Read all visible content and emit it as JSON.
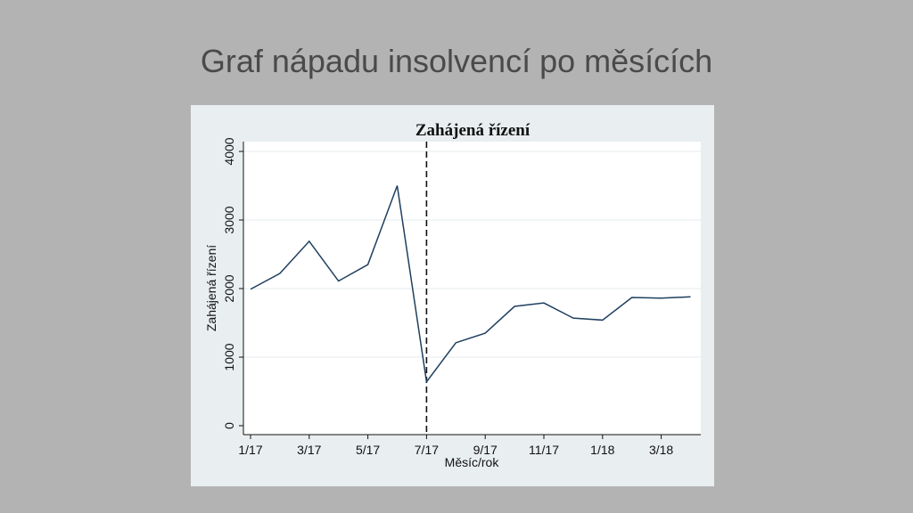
{
  "slide": {
    "title": "Graf nápadu insolvencí po měsících"
  },
  "chart_data": {
    "type": "line",
    "title": "Zahájená řízení",
    "xlabel": "Měsíc/rok",
    "ylabel": "Zahájená řízení",
    "x_tick_labels": [
      "1/17",
      "3/17",
      "5/17",
      "7/17",
      "9/17",
      "11/17",
      "1/18",
      "3/18"
    ],
    "y_tick_labels": [
      "0",
      "1000",
      "2000",
      "3000",
      "4000"
    ],
    "ylim": [
      0,
      4000
    ],
    "grid": true,
    "x": [
      "1/17",
      "2/17",
      "3/17",
      "4/17",
      "5/17",
      "6/17",
      "7/17",
      "8/17",
      "9/17",
      "10/17",
      "11/17",
      "12/17",
      "1/18",
      "2/18",
      "3/18",
      "4/18"
    ],
    "values": [
      1990,
      2220,
      2690,
      2110,
      2350,
      3500,
      640,
      1210,
      1350,
      1740,
      1790,
      1570,
      1540,
      1870,
      1860,
      1880
    ],
    "vertical_reference_line": "7/17",
    "colors": {
      "line": "#1f3f5f",
      "panel_background": "#e9eef0",
      "plot_background": "#ffffff",
      "grid": "#e6ebee"
    }
  }
}
